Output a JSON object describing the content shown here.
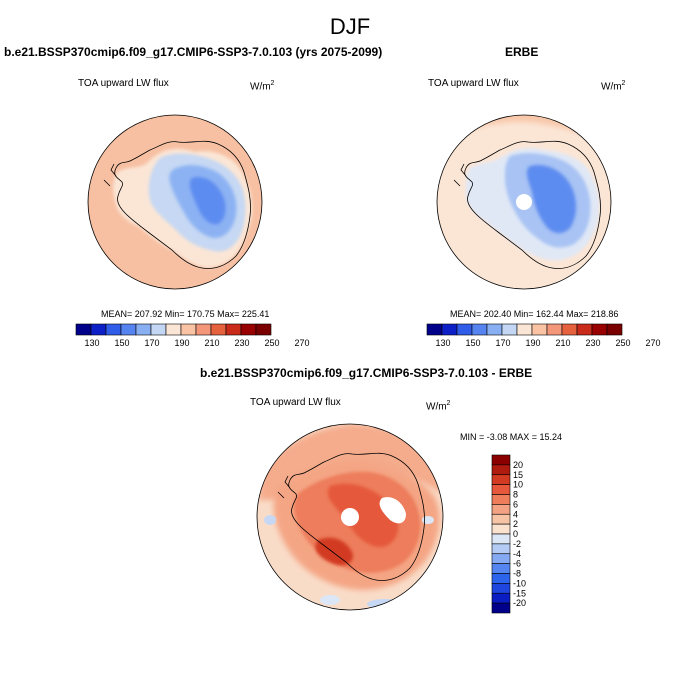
{
  "figure": {
    "title": "DJF"
  },
  "colors": {
    "absolute_scale": [
      "#00008b",
      "#0d20c8",
      "#2f5ce8",
      "#5584f0",
      "#89aff3",
      "#c3d6f4",
      "#fbe5d4",
      "#f9c3a4",
      "#f3967a",
      "#e6623f",
      "#c92a19",
      "#990000",
      "#7a0000"
    ],
    "difference_scale": [
      "#00008b",
      "#0a1dc3",
      "#1f46df",
      "#2d64ec",
      "#5585f0",
      "#86a9f3",
      "#b3cbf5",
      "#dbe6f6",
      "#fae2cf",
      "#f7c4a6",
      "#f3a283",
      "#ee7d5c",
      "#e6573b",
      "#d33a22",
      "#b01b0f",
      "#8a0000"
    ]
  },
  "panels": {
    "model": {
      "case_title": "b.e21.BSSP370cmip6.f09_g17.CMIP6-SSP3-7.0.103 (yrs 2075-2099)",
      "variable": "TOA upward LW flux",
      "units": "W/m",
      "units_exp": "2",
      "stats": "MEAN= 207.92   Min= 170.75   Max= 225.41"
    },
    "obs": {
      "case_title": "ERBE",
      "variable": "TOA upward LW flux",
      "units": "W/m",
      "units_exp": "2",
      "stats": "MEAN= 202.40   Min= 162.44   Max= 218.86"
    },
    "diff": {
      "case_title": "b.e21.BSSP370cmip6.f09_g17.CMIP6-SSP3-7.0.103 - ERBE",
      "variable": "TOA upward LW flux",
      "units": "W/m",
      "units_exp": "2",
      "stats": "MIN =  -3.08 MAX =  15.24"
    }
  },
  "chart_data": [
    {
      "type": "heatmap",
      "projection": "south-polar stereographic",
      "title": "b.e21.BSSP370cmip6.f09_g17.CMIP6-SSP3-7.0.103 (yrs 2075-2099)",
      "variable": "TOA upward LW flux",
      "units": "W/m^2",
      "mean": 207.92,
      "min": 170.75,
      "max": 225.41,
      "colorbar_ticks": [
        "130",
        "150",
        "170",
        "190",
        "210",
        "230",
        "250",
        "270"
      ],
      "colorbar_orientation": "horizontal"
    },
    {
      "type": "heatmap",
      "projection": "south-polar stereographic",
      "title": "ERBE",
      "variable": "TOA upward LW flux",
      "units": "W/m^2",
      "mean": 202.4,
      "min": 162.44,
      "max": 218.86,
      "colorbar_ticks": [
        "130",
        "150",
        "170",
        "190",
        "210",
        "230",
        "250",
        "270"
      ],
      "colorbar_orientation": "horizontal"
    },
    {
      "type": "heatmap",
      "projection": "south-polar stereographic",
      "title": "b.e21.BSSP370cmip6.f09_g17.CMIP6-SSP3-7.0.103 - ERBE",
      "variable": "TOA upward LW flux",
      "units": "W/m^2",
      "min": -3.08,
      "max": 15.24,
      "colorbar_ticks": [
        "20",
        "15",
        "10",
        "8",
        "6",
        "4",
        "2",
        "0",
        "-2",
        "-4",
        "-6",
        "-8",
        "-10",
        "-15",
        "-20"
      ],
      "colorbar_orientation": "vertical"
    }
  ]
}
